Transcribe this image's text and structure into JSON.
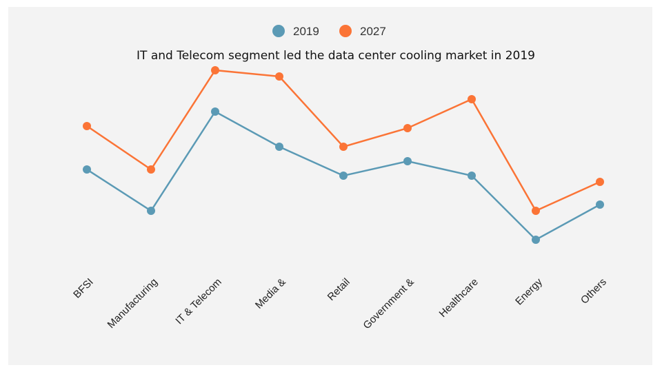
{
  "chart_data": {
    "type": "line",
    "title": "IT and Telecom segment led the data center cooling market in 2019",
    "xlabel": "",
    "ylabel": "",
    "categories": [
      "BFSI",
      "Manufacturing",
      "IT & Telecom",
      "Media &",
      "Retail",
      "Government &",
      "Healthcare",
      "Energy",
      "Others"
    ],
    "series": [
      {
        "name": "2019",
        "color": "#5b9ab5",
        "values": [
          48,
          28,
          76,
          59,
          45,
          52,
          45,
          14,
          31
        ]
      },
      {
        "name": "2027",
        "color": "#fb7436",
        "values": [
          69,
          48,
          96,
          93,
          59,
          68,
          82,
          28,
          42
        ]
      }
    ],
    "ylim": [
      0,
      100
    ],
    "grid": false,
    "y_axis_visible": false,
    "legend_placement": "top-center"
  }
}
